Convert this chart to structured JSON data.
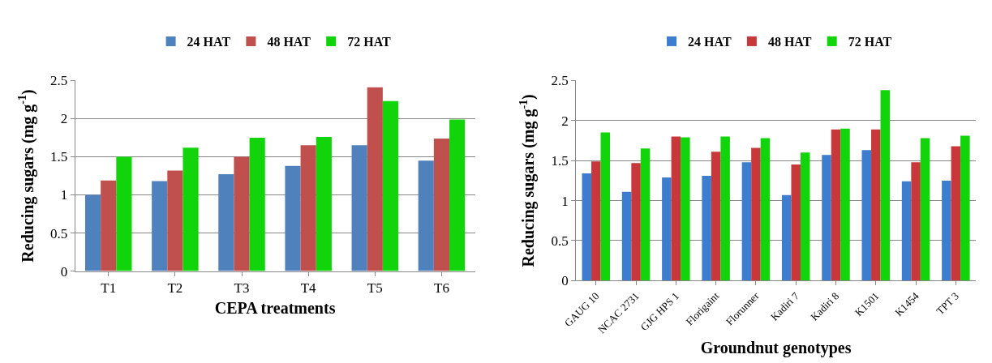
{
  "chart_data": [
    {
      "type": "bar",
      "xlabel": "CEPA treatments",
      "ylabel": "Reducing sugars (mg g$^{-1}$)",
      "categories": [
        "T1",
        "T2",
        "T3",
        "T4",
        "T5",
        "T6"
      ],
      "series": [
        {
          "name": "24 HAT",
          "color": "#4f81bd",
          "values": [
            1.0,
            1.18,
            1.27,
            1.38,
            1.65,
            1.45
          ]
        },
        {
          "name": "48 HAT",
          "color": "#c0504d",
          "values": [
            1.19,
            1.32,
            1.5,
            1.65,
            2.41,
            1.74
          ]
        },
        {
          "name": "72 HAT",
          "color": "#12d40a",
          "values": [
            1.5,
            1.62,
            1.75,
            1.76,
            2.23,
            1.99
          ]
        }
      ],
      "ylim": [
        0,
        2.5
      ],
      "yticks": [
        0,
        0.5,
        1,
        1.5,
        2,
        2.5
      ],
      "grid": "y",
      "legend": "top"
    },
    {
      "type": "bar",
      "xlabel": "Groundnut genotypes",
      "ylabel": "Reducing sugars (mg g$^{-1}$)",
      "categories": [
        "GAUG 10",
        "NCAC 2731",
        "GJG HPS 1",
        "Florigaint",
        "Florunner",
        "Kadiri 7",
        "Kadiri 8",
        "K1501",
        "K1454",
        "TPT 3"
      ],
      "series": [
        {
          "name": "24 HAT",
          "color": "#3c7dd0",
          "values": [
            1.34,
            1.11,
            1.29,
            1.31,
            1.48,
            1.07,
            1.57,
            1.63,
            1.24,
            1.25
          ]
        },
        {
          "name": "48 HAT",
          "color": "#c8383a",
          "values": [
            1.49,
            1.47,
            1.8,
            1.61,
            1.66,
            1.45,
            1.89,
            1.89,
            1.48,
            1.68
          ]
        },
        {
          "name": "72 HAT",
          "color": "#12d40a",
          "values": [
            1.85,
            1.65,
            1.79,
            1.8,
            1.78,
            1.6,
            1.9,
            2.38,
            1.78,
            1.81
          ]
        }
      ],
      "ylim": [
        0,
        2.5
      ],
      "yticks": [
        0,
        0.5,
        1,
        1.5,
        2,
        2.5
      ],
      "grid": "y",
      "legend": "top"
    }
  ]
}
